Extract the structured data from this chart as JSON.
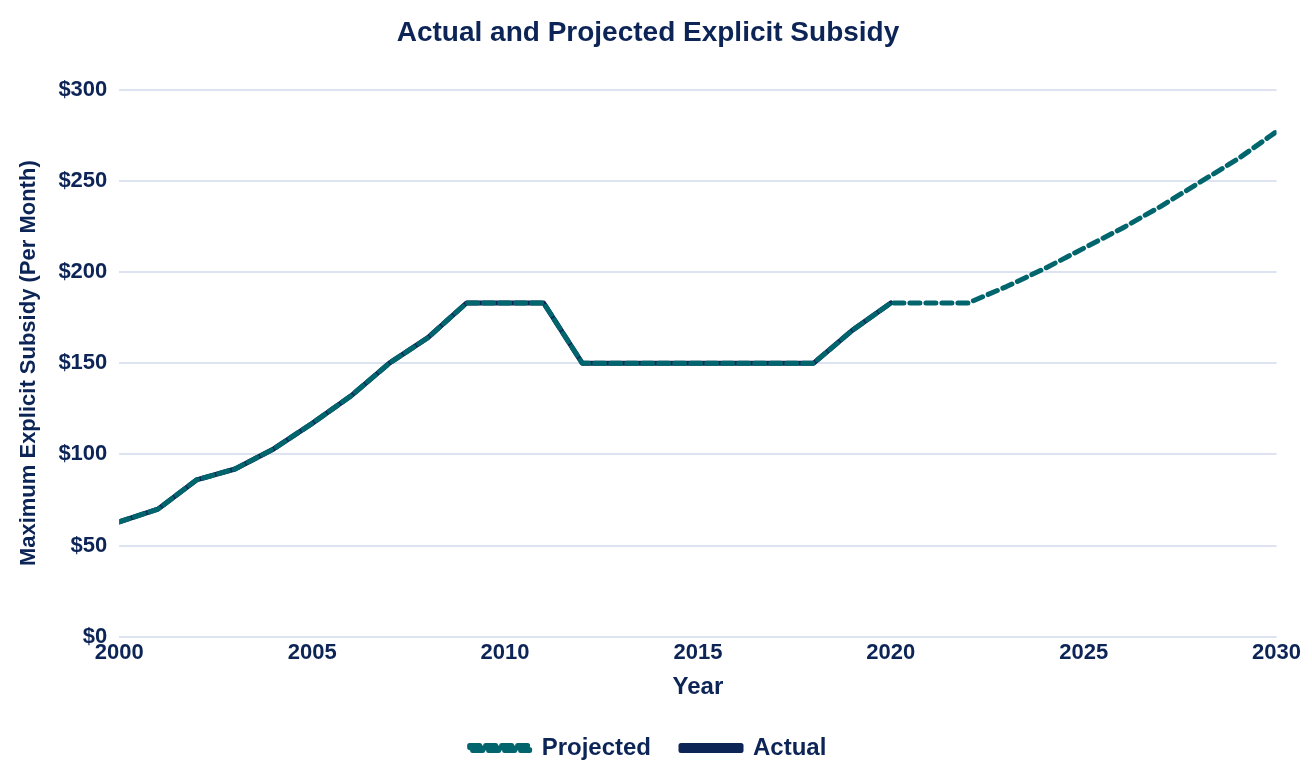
{
  "chart_data": {
    "type": "line",
    "title": "Actual and Projected Explicit Subsidy",
    "xlabel": "Year",
    "ylabel": "Maximum Explicit Subsidy (Per Month)",
    "xlim": [
      2000,
      2030
    ],
    "xticks": [
      2000,
      2005,
      2010,
      2015,
      2020,
      2025,
      2030
    ],
    "ylim": [
      0,
      300
    ],
    "yticks": [
      {
        "value": 0,
        "label": "$0"
      },
      {
        "value": 50,
        "label": "$50"
      },
      {
        "value": 100,
        "label": "$100"
      },
      {
        "value": 150,
        "label": "$150"
      },
      {
        "value": 200,
        "label": "$200"
      },
      {
        "value": 250,
        "label": "$250"
      },
      {
        "value": 300,
        "label": "$300"
      }
    ],
    "grid": "y",
    "legend": "bottom",
    "marker": "none",
    "series": [
      {
        "name": "Actual",
        "color": "#0c2456",
        "line_style": "solid",
        "x": [
          2000,
          2001,
          2002,
          2003,
          2004,
          2005,
          2006,
          2007,
          2008,
          2009,
          2010,
          2011,
          2012,
          2013,
          2014,
          2015,
          2016,
          2017,
          2018,
          2019,
          2020
        ],
        "values": [
          63,
          70,
          86,
          92,
          103,
          117,
          132,
          150,
          164,
          183,
          183,
          183,
          150,
          150,
          150,
          150,
          150,
          150,
          150,
          168,
          183
        ]
      },
      {
        "name": "Projected",
        "color": "#00656d",
        "line_style": "dashed",
        "x": [
          2000,
          2001,
          2002,
          2003,
          2004,
          2005,
          2006,
          2007,
          2008,
          2009,
          2010,
          2011,
          2012,
          2013,
          2014,
          2015,
          2016,
          2017,
          2018,
          2019,
          2020,
          2021,
          2022,
          2023,
          2024,
          2025,
          2026,
          2027,
          2028,
          2029,
          2030
        ],
        "values": [
          63,
          70,
          86,
          92,
          103,
          117,
          132,
          150,
          164,
          183,
          183,
          183,
          150,
          150,
          150,
          150,
          150,
          150,
          150,
          168,
          183,
          183,
          183,
          192,
          202,
          213,
          224,
          236,
          249,
          262,
          277
        ]
      }
    ]
  }
}
